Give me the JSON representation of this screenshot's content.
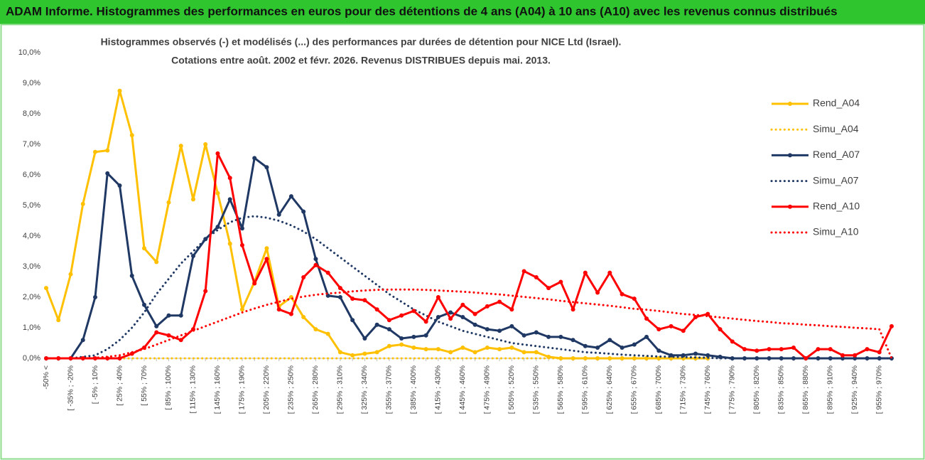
{
  "header": {
    "title": "ADAM Informe. Histogrammes des performances en euros pour des détentions de 4 ans (A04) à 10 ans (A10) avec les revenus connus distribués"
  },
  "chart_data": {
    "type": "line",
    "title": "Histogrammes observés (-) et modélisés (...) des performances par durées de détention pour NICE Ltd (Israel).",
    "subtitle": "Cotations entre août. 2002 et févr. 2026. Revenus DISTRIBUES depuis mai. 2013.",
    "categories": [
      "-50% <",
      null,
      "[ -35% ; -20%",
      null,
      "[ -5% ; 10%",
      null,
      "[ 25% ; 40%",
      null,
      "[ 55% ; 70%",
      null,
      "[ 85% ; 100%",
      null,
      "[ 115% ; 130%",
      null,
      "[ 145% ; 160%",
      null,
      "[ 175% ; 190%",
      null,
      "[ 205% ; 220%",
      null,
      "[ 235% ; 250%",
      null,
      "[ 265% ; 280%",
      null,
      "[ 295% ; 310%",
      null,
      "[ 325% ; 340%",
      null,
      "[ 355% ; 370%",
      null,
      "[ 385% ; 400%",
      null,
      "[ 415% ; 430%",
      null,
      "[ 445% ; 460%",
      null,
      "[ 475% ; 490%",
      null,
      "[ 505% ; 520%",
      null,
      "[ 535% ; 550%",
      null,
      "[ 565% ; 580%",
      null,
      "[ 595% ; 610%",
      null,
      "[ 625% ; 640%",
      null,
      "[ 655% ; 670%",
      null,
      "[ 685% ; 700%",
      null,
      "[ 715% ; 730%",
      null,
      "[ 745% ; 760%",
      null,
      "[ 775% ; 790%",
      null,
      "[ 805% ; 820%",
      null,
      "[ 835% ; 850%",
      null,
      "[ 865% ; 880%",
      null,
      "[ 895% ; 910%",
      null,
      "[ 925% ; 940%",
      null,
      "[ 955% ; 970%",
      null
    ],
    "series": [
      {
        "name": "Rend_A04",
        "color": "#ffc000",
        "style": "solid",
        "markers": true,
        "values": [
          2.3,
          1.25,
          2.75,
          5.05,
          6.75,
          6.8,
          8.75,
          7.3,
          3.6,
          3.15,
          5.1,
          6.95,
          5.2,
          7.0,
          5.4,
          3.75,
          1.6,
          2.5,
          3.6,
          1.7,
          2.0,
          1.35,
          0.95,
          0.8,
          0.2,
          0.1,
          0.15,
          0.2,
          0.4,
          0.45,
          0.35,
          0.3,
          0.3,
          0.2,
          0.35,
          0.2,
          0.35,
          0.3,
          0.35,
          0.2,
          0.2,
          0.05,
          0,
          0,
          0,
          0,
          0,
          0,
          0,
          0,
          0,
          0,
          0,
          0,
          0,
          null,
          null,
          null,
          null,
          null,
          null,
          null,
          null,
          null,
          null,
          null,
          null,
          null,
          null,
          null
        ]
      },
      {
        "name": "Simu_A04",
        "color": "#ffc000",
        "style": "dotted",
        "markers": false,
        "values": [
          0,
          0,
          0,
          0,
          0,
          0,
          0,
          0,
          0,
          0,
          0,
          0,
          0,
          0,
          0,
          0,
          0,
          0,
          0,
          0,
          0,
          0,
          0,
          0,
          0,
          0,
          0,
          0,
          0,
          0,
          0,
          0,
          0,
          0,
          0,
          0,
          0,
          0,
          0,
          0,
          0,
          0,
          0,
          0,
          0,
          0,
          0,
          0,
          0,
          0,
          0,
          0,
          0,
          0,
          0,
          null,
          null,
          null,
          null,
          null,
          null,
          null,
          null,
          null,
          null,
          null,
          null,
          null,
          null,
          null
        ]
      },
      {
        "name": "Rend_A07",
        "color": "#1f3864",
        "style": "solid",
        "markers": true,
        "values": [
          0,
          0,
          0,
          0.6,
          2.0,
          6.05,
          5.65,
          2.7,
          1.75,
          1.05,
          1.4,
          1.4,
          3.35,
          3.9,
          4.3,
          5.2,
          4.25,
          6.55,
          6.25,
          4.7,
          5.3,
          4.8,
          3.25,
          2.05,
          2.0,
          1.25,
          0.65,
          1.1,
          0.95,
          0.65,
          0.7,
          0.75,
          1.35,
          1.5,
          1.35,
          1.1,
          0.95,
          0.9,
          1.05,
          0.75,
          0.85,
          0.7,
          0.7,
          0.6,
          0.4,
          0.35,
          0.6,
          0.35,
          0.45,
          0.7,
          0.25,
          0.1,
          0.1,
          0.15,
          0.1,
          0.05,
          0,
          0,
          0,
          0,
          0,
          0,
          0,
          0,
          0,
          0,
          0,
          0,
          0,
          0
        ]
      },
      {
        "name": "Simu_A07",
        "color": "#1f3864",
        "style": "dotted",
        "markers": false,
        "values": [
          0,
          0,
          0,
          0.05,
          0.1,
          0.3,
          0.6,
          1.0,
          1.5,
          2.1,
          2.6,
          3.1,
          3.5,
          3.9,
          4.2,
          4.45,
          4.6,
          4.65,
          4.6,
          4.5,
          4.35,
          4.15,
          3.9,
          3.6,
          3.3,
          3.0,
          2.7,
          2.4,
          2.1,
          1.85,
          1.6,
          1.4,
          1.2,
          1.05,
          0.9,
          0.8,
          0.7,
          0.6,
          0.5,
          0.45,
          0.4,
          0.35,
          0.3,
          0.25,
          0.2,
          0.18,
          0.15,
          0.12,
          0.1,
          0.08,
          0.06,
          0.05,
          0.04,
          0.03,
          0.02,
          0,
          0,
          0,
          0,
          0,
          0,
          0,
          0,
          0,
          0,
          0,
          0,
          0,
          0,
          0
        ]
      },
      {
        "name": "Rend_A10",
        "color": "#ff0000",
        "style": "solid",
        "markers": true,
        "values": [
          0,
          0,
          0,
          0,
          0,
          0,
          0,
          0.15,
          0.35,
          0.85,
          0.75,
          0.6,
          0.95,
          2.2,
          6.7,
          5.9,
          3.7,
          2.45,
          3.25,
          1.6,
          1.45,
          2.65,
          3.05,
          2.8,
          2.3,
          1.95,
          1.9,
          1.6,
          1.25,
          1.4,
          1.55,
          1.2,
          2.0,
          1.3,
          1.75,
          1.45,
          1.7,
          1.85,
          1.6,
          2.85,
          2.65,
          2.3,
          2.5,
          1.6,
          2.8,
          2.15,
          2.8,
          2.1,
          1.95,
          1.3,
          0.95,
          1.05,
          0.9,
          1.35,
          1.45,
          0.95,
          0.55,
          0.3,
          0.25,
          0.3,
          0.3,
          0.35,
          0,
          0.3,
          0.3,
          0.1,
          0.1,
          0.3,
          0.2,
          1.05
        ]
      },
      {
        "name": "Simu_A10",
        "color": "#ff0000",
        "style": "dotted",
        "markers": false,
        "values": [
          0,
          0,
          0,
          0,
          0.02,
          0.05,
          0.1,
          0.2,
          0.3,
          0.45,
          0.6,
          0.75,
          0.9,
          1.05,
          1.2,
          1.35,
          1.5,
          1.63,
          1.75,
          1.85,
          1.95,
          2.02,
          2.08,
          2.12,
          2.15,
          2.19,
          2.22,
          2.24,
          2.25,
          2.25,
          2.25,
          2.24,
          2.22,
          2.2,
          2.18,
          2.15,
          2.12,
          2.09,
          2.05,
          2.01,
          1.97,
          1.93,
          1.88,
          1.84,
          1.8,
          1.76,
          1.72,
          1.67,
          1.62,
          1.59,
          1.55,
          1.5,
          1.45,
          1.42,
          1.38,
          1.34,
          1.3,
          1.26,
          1.22,
          1.19,
          1.15,
          1.13,
          1.1,
          1.08,
          1.05,
          1.03,
          1.0,
          0.98,
          0.95,
          0.0
        ]
      }
    ],
    "ylim": [
      0,
      10
    ],
    "yticks": [
      {
        "value": 0,
        "label": "0,0%"
      },
      {
        "value": 1,
        "label": "1,0%"
      },
      {
        "value": 2,
        "label": "2,0%"
      },
      {
        "value": 3,
        "label": "3,0%"
      },
      {
        "value": 4,
        "label": "4,0%"
      },
      {
        "value": 5,
        "label": "5,0%"
      },
      {
        "value": 6,
        "label": "6,0%"
      },
      {
        "value": 7,
        "label": "7,0%"
      },
      {
        "value": 8,
        "label": "8,0%"
      },
      {
        "value": 9,
        "label": "9,0%"
      },
      {
        "value": 10,
        "label": "10,0%"
      }
    ],
    "legend": "right"
  }
}
